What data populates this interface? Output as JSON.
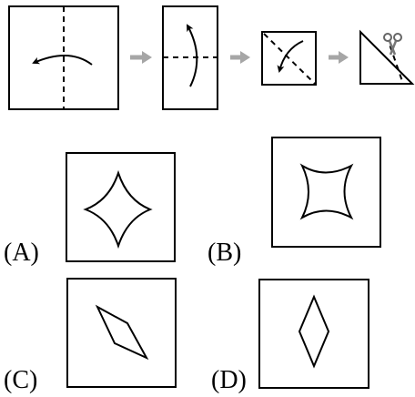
{
  "colors": {
    "stroke": "#000000",
    "flow_arrow": "#a6a6a6",
    "background": "#ffffff"
  },
  "fold_sequence": {
    "steps": [
      {
        "id": "step-1",
        "shape": "square",
        "fold_line": "vertical-dashed",
        "fold_arrow": "right-to-left"
      },
      {
        "id": "step-2",
        "shape": "tall-rectangle",
        "fold_line": "horizontal-dashed",
        "fold_arrow": "bottom-to-top"
      },
      {
        "id": "step-3",
        "shape": "small-square",
        "fold_line": "diagonal-dashed",
        "fold_arrow": "upper-right-to-lower-left"
      },
      {
        "id": "step-4",
        "shape": "triangle",
        "cut_line": "dashed",
        "tool_icon": "scissors-icon"
      }
    ],
    "arrow_icon": "right-arrow-icon"
  },
  "options": [
    {
      "label": "(A)",
      "shape": "four-pointed-star"
    },
    {
      "label": "(B)",
      "shape": "concave-star"
    },
    {
      "label": "(C)",
      "shape": "tilted-rhombus"
    },
    {
      "label": "(D)",
      "shape": "vertical-rhombus"
    }
  ]
}
